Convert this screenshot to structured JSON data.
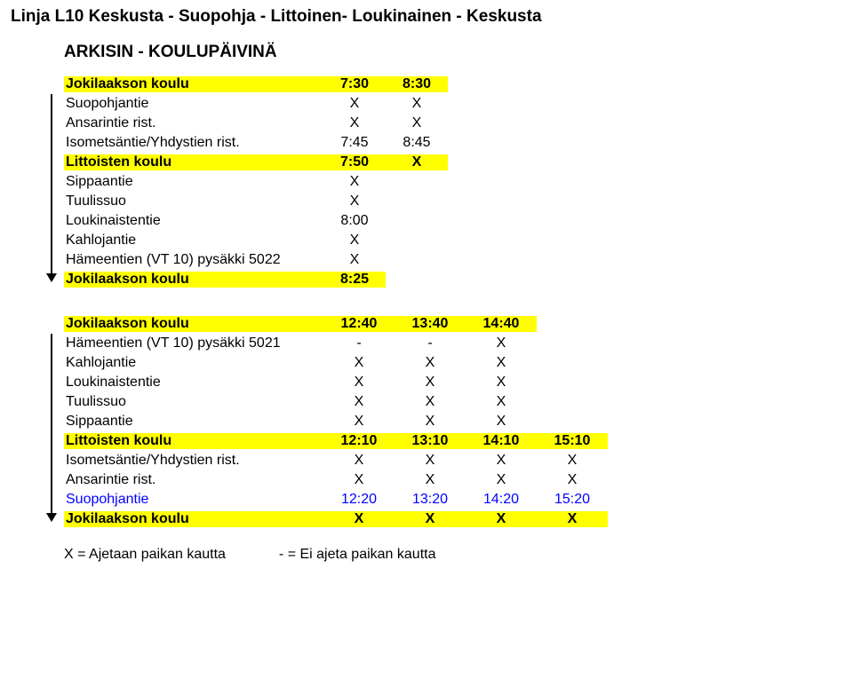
{
  "colors": {
    "highlight": "#ffff00",
    "blue": "#0000ff",
    "text": "#000000",
    "background": "#ffffff"
  },
  "title": "Linja L10 Keskusta - Suopohja - Littoinen- Loukinainen - Keskusta",
  "subtitle": "ARKISIN - KOULUPÄIVINÄ",
  "table1": {
    "rows": [
      {
        "label": "Jokilaakson koulu",
        "c": [
          "7:30",
          "8:30"
        ],
        "hl": true
      },
      {
        "label": "Suopohjantie",
        "c": [
          "X",
          "X"
        ],
        "hl": false
      },
      {
        "label": "Ansarintie rist.",
        "c": [
          "X",
          "X"
        ],
        "hl": false
      },
      {
        "label": "Isometsäntie/Yhdystien rist.",
        "c": [
          "7:45",
          "8:45"
        ],
        "hl": false
      },
      {
        "label": "Littoisten koulu",
        "c": [
          "7:50",
          "X"
        ],
        "hl": true
      },
      {
        "label": "Sippaantie",
        "c": [
          "X",
          ""
        ],
        "hl": false
      },
      {
        "label": "Tuulissuo",
        "c": [
          "X",
          ""
        ],
        "hl": false
      },
      {
        "label": "Loukinaistentie",
        "c": [
          "8:00",
          ""
        ],
        "hl": false
      },
      {
        "label": "Kahlojantie",
        "c": [
          "X",
          ""
        ],
        "hl": false
      },
      {
        "label": "Hämeentien (VT 10) pysäkki 5022",
        "c": [
          "X",
          ""
        ],
        "hl": false
      },
      {
        "label": "Jokilaakson koulu",
        "c": [
          "8:25",
          ""
        ],
        "hl": true
      }
    ]
  },
  "table2": {
    "rows": [
      {
        "label": "Jokilaakson koulu",
        "c": [
          "12:40",
          "13:40",
          "14:40",
          ""
        ],
        "hl": true,
        "span": 3
      },
      {
        "label": "Hämeentien (VT 10) pysäkki 5021",
        "c": [
          "-",
          "-",
          "X",
          ""
        ],
        "hl": false,
        "span": 3
      },
      {
        "label": "Kahlojantie",
        "c": [
          "X",
          "X",
          "X",
          ""
        ],
        "hl": false,
        "span": 3
      },
      {
        "label": "Loukinaistentie",
        "c": [
          "X",
          "X",
          "X",
          ""
        ],
        "hl": false,
        "span": 3
      },
      {
        "label": "Tuulissuo",
        "c": [
          "X",
          "X",
          "X",
          ""
        ],
        "hl": false,
        "span": 3
      },
      {
        "label": "Sippaantie",
        "c": [
          "X",
          "X",
          "X",
          ""
        ],
        "hl": false,
        "span": 3
      },
      {
        "label": "Littoisten koulu",
        "c": [
          "12:10",
          "13:10",
          "14:10",
          "15:10"
        ],
        "hl": true,
        "span": 4
      },
      {
        "label": "Isometsäntie/Yhdystien rist.",
        "c": [
          "X",
          "X",
          "X",
          "X"
        ],
        "hl": false,
        "span": 4
      },
      {
        "label": "Ansarintie rist.",
        "c": [
          "X",
          "X",
          "X",
          "X"
        ],
        "hl": false,
        "span": 4
      },
      {
        "label": "Suopohjantie",
        "c": [
          "12:20",
          "13:20",
          "14:20",
          "15:20"
        ],
        "hl": false,
        "span": 4,
        "blue": true
      },
      {
        "label": "Jokilaakson koulu",
        "c": [
          "X",
          "X",
          "X",
          "X"
        ],
        "hl": true,
        "span": 4,
        "blue": false
      }
    ]
  },
  "legend": {
    "x": "X = Ajetaan paikan kautta",
    "dash": "- = Ei ajeta paikan kautta"
  },
  "layout": {
    "table1_cols": 2,
    "table2_cols": 4,
    "arrow1_height": 200,
    "arrow2_height": 200
  }
}
